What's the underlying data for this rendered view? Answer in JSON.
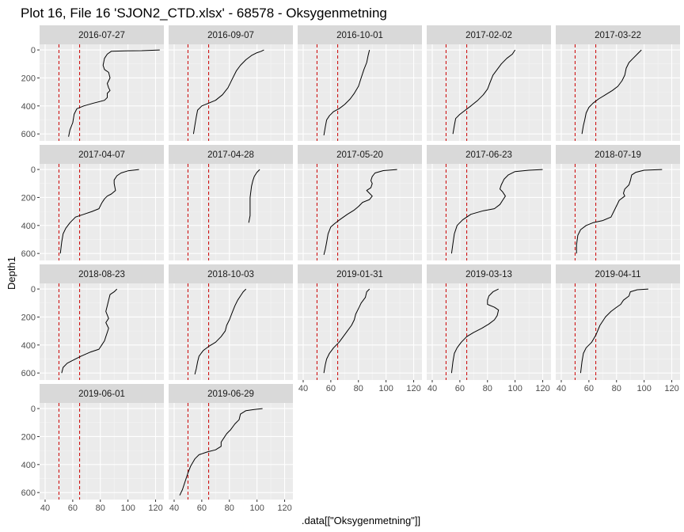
{
  "chart_data": {
    "type": "line",
    "title": "Plot 16, File 16 'SJON2_CTD.xlsx' - 68578  -  Oksygenmetning",
    "xlabel": ".data[[\"Oksygenmetning\"]]",
    "ylabel": "Depth1",
    "xlim": [
      36,
      126
    ],
    "ylim": [
      650,
      -40
    ],
    "xticks": [
      40,
      60,
      80,
      100,
      120
    ],
    "yticks": [
      0,
      200,
      400,
      600
    ],
    "y_reversed": true,
    "grid": true,
    "reference_lines": {
      "x": [
        50,
        65
      ],
      "color": "#cc0000",
      "style": "dashed"
    },
    "panels": [
      {
        "label": "2016-07-27",
        "points": [
          [
            123,
            0
          ],
          [
            110,
            5
          ],
          [
            98,
            7
          ],
          [
            88,
            9
          ],
          [
            85,
            30
          ],
          [
            83,
            60
          ],
          [
            82,
            110
          ],
          [
            83,
            140
          ],
          [
            86,
            160
          ],
          [
            87,
            200
          ],
          [
            85,
            240
          ],
          [
            86,
            270
          ],
          [
            87,
            290
          ],
          [
            85,
            310
          ],
          [
            85,
            340
          ],
          [
            83,
            360
          ],
          [
            75,
            380
          ],
          [
            68,
            400
          ],
          [
            63,
            420
          ],
          [
            61,
            460
          ],
          [
            60,
            520
          ],
          [
            58,
            570
          ],
          [
            57,
            620
          ]
        ]
      },
      {
        "label": "2016-09-07",
        "points": [
          [
            105,
            0
          ],
          [
            103,
            10
          ],
          [
            100,
            20
          ],
          [
            96,
            40
          ],
          [
            92,
            70
          ],
          [
            88,
            110
          ],
          [
            85,
            150
          ],
          [
            82,
            210
          ],
          [
            79,
            270
          ],
          [
            75,
            320
          ],
          [
            70,
            360
          ],
          [
            65,
            380
          ],
          [
            60,
            400
          ],
          [
            57,
            430
          ],
          [
            56,
            480
          ],
          [
            55,
            540
          ],
          [
            54,
            600
          ]
        ]
      },
      {
        "label": "2016-10-01",
        "points": [
          [
            88,
            0
          ],
          [
            87,
            40
          ],
          [
            86,
            90
          ],
          [
            84,
            140
          ],
          [
            82,
            200
          ],
          [
            80,
            260
          ],
          [
            77,
            310
          ],
          [
            74,
            350
          ],
          [
            70,
            390
          ],
          [
            66,
            420
          ],
          [
            62,
            440
          ],
          [
            59,
            470
          ],
          [
            57,
            500
          ],
          [
            56,
            550
          ],
          [
            55,
            610
          ]
        ]
      },
      {
        "label": "2017-02-02",
        "points": [
          [
            100,
            0
          ],
          [
            98,
            30
          ],
          [
            94,
            60
          ],
          [
            90,
            100
          ],
          [
            87,
            140
          ],
          [
            84,
            180
          ],
          [
            82,
            230
          ],
          [
            80,
            280
          ],
          [
            77,
            320
          ],
          [
            73,
            360
          ],
          [
            68,
            400
          ],
          [
            64,
            430
          ],
          [
            60,
            460
          ],
          [
            57,
            490
          ],
          [
            56,
            540
          ],
          [
            55,
            600
          ]
        ]
      },
      {
        "label": "2017-03-22",
        "points": [
          [
            98,
            0
          ],
          [
            96,
            20
          ],
          [
            92,
            60
          ],
          [
            89,
            90
          ],
          [
            87,
            130
          ],
          [
            86,
            180
          ],
          [
            84,
            220
          ],
          [
            81,
            260
          ],
          [
            77,
            290
          ],
          [
            72,
            320
          ],
          [
            67,
            350
          ],
          [
            63,
            380
          ],
          [
            60,
            410
          ],
          [
            58,
            450
          ],
          [
            57,
            500
          ],
          [
            56,
            540
          ],
          [
            55,
            600
          ]
        ]
      },
      {
        "label": "2017-04-07",
        "points": [
          [
            108,
            0
          ],
          [
            100,
            10
          ],
          [
            95,
            25
          ],
          [
            92,
            45
          ],
          [
            90,
            75
          ],
          [
            90,
            100
          ],
          [
            91,
            150
          ],
          [
            88,
            175
          ],
          [
            85,
            190
          ],
          [
            83,
            210
          ],
          [
            81,
            240
          ],
          [
            79,
            280
          ],
          [
            74,
            300
          ],
          [
            68,
            320
          ],
          [
            62,
            340
          ],
          [
            58,
            380
          ],
          [
            55,
            420
          ],
          [
            53,
            460
          ],
          [
            52,
            520
          ],
          [
            51,
            600
          ]
        ]
      },
      {
        "label": "2017-04-28",
        "points": [
          [
            102,
            0
          ],
          [
            100,
            20
          ],
          [
            98,
            50
          ],
          [
            97,
            80
          ],
          [
            96,
            120
          ],
          [
            95,
            200
          ],
          [
            95,
            280
          ],
          [
            95,
            330
          ],
          [
            94,
            380
          ]
        ]
      },
      {
        "label": "2017-05-20",
        "points": [
          [
            108,
            0
          ],
          [
            98,
            8
          ],
          [
            92,
            25
          ],
          [
            90,
            50
          ],
          [
            89,
            80
          ],
          [
            90,
            100
          ],
          [
            89,
            130
          ],
          [
            86,
            150
          ],
          [
            88,
            170
          ],
          [
            90,
            190
          ],
          [
            88,
            215
          ],
          [
            83,
            235
          ],
          [
            80,
            265
          ],
          [
            77,
            290
          ],
          [
            72,
            320
          ],
          [
            67,
            355
          ],
          [
            63,
            385
          ],
          [
            60,
            410
          ],
          [
            58,
            460
          ],
          [
            57,
            520
          ],
          [
            56,
            570
          ],
          [
            55,
            610
          ]
        ]
      },
      {
        "label": "2017-06-23",
        "points": [
          [
            120,
            0
          ],
          [
            110,
            5
          ],
          [
            100,
            15
          ],
          [
            95,
            40
          ],
          [
            92,
            70
          ],
          [
            90,
            110
          ],
          [
            89,
            140
          ],
          [
            91,
            160
          ],
          [
            93,
            190
          ],
          [
            91,
            220
          ],
          [
            89,
            250
          ],
          [
            85,
            280
          ],
          [
            77,
            295
          ],
          [
            68,
            320
          ],
          [
            62,
            360
          ],
          [
            58,
            400
          ],
          [
            56,
            460
          ],
          [
            55,
            530
          ],
          [
            54,
            600
          ]
        ]
      },
      {
        "label": "2018-07-19",
        "points": [
          [
            113,
            0
          ],
          [
            100,
            5
          ],
          [
            94,
            20
          ],
          [
            91,
            40
          ],
          [
            90,
            80
          ],
          [
            89,
            110
          ],
          [
            86,
            140
          ],
          [
            85,
            170
          ],
          [
            86,
            190
          ],
          [
            82,
            220
          ],
          [
            80,
            260
          ],
          [
            78,
            300
          ],
          [
            76,
            340
          ],
          [
            70,
            365
          ],
          [
            63,
            380
          ],
          [
            58,
            400
          ],
          [
            54,
            430
          ],
          [
            52,
            470
          ],
          [
            51,
            540
          ],
          [
            51,
            600
          ]
        ]
      },
      {
        "label": "2018-08-23",
        "points": [
          [
            92,
            0
          ],
          [
            90,
            20
          ],
          [
            87,
            40
          ],
          [
            86,
            80
          ],
          [
            85,
            120
          ],
          [
            84,
            160
          ],
          [
            86,
            210
          ],
          [
            84,
            240
          ],
          [
            86,
            280
          ],
          [
            85,
            310
          ],
          [
            84,
            340
          ],
          [
            83,
            370
          ],
          [
            81,
            400
          ],
          [
            79,
            430
          ],
          [
            73,
            450
          ],
          [
            66,
            480
          ],
          [
            60,
            510
          ],
          [
            56,
            530
          ],
          [
            53,
            560
          ],
          [
            52,
            600
          ]
        ]
      },
      {
        "label": "2018-10-03",
        "points": [
          [
            92,
            0
          ],
          [
            90,
            20
          ],
          [
            88,
            50
          ],
          [
            86,
            80
          ],
          [
            84,
            120
          ],
          [
            82,
            170
          ],
          [
            80,
            220
          ],
          [
            78,
            260
          ],
          [
            77,
            300
          ],
          [
            74,
            340
          ],
          [
            70,
            380
          ],
          [
            65,
            410
          ],
          [
            61,
            440
          ],
          [
            58,
            480
          ],
          [
            57,
            520
          ],
          [
            56,
            570
          ],
          [
            55,
            610
          ]
        ]
      },
      {
        "label": "2019-01-31",
        "points": [
          [
            88,
            0
          ],
          [
            86,
            20
          ],
          [
            85,
            60
          ],
          [
            82,
            100
          ],
          [
            80,
            140
          ],
          [
            78,
            180
          ],
          [
            77,
            220
          ],
          [
            75,
            260
          ],
          [
            72,
            300
          ],
          [
            69,
            340
          ],
          [
            66,
            380
          ],
          [
            62,
            420
          ],
          [
            59,
            460
          ],
          [
            57,
            500
          ],
          [
            56,
            540
          ],
          [
            55,
            600
          ]
        ]
      },
      {
        "label": "2019-03-13",
        "points": [
          [
            88,
            0
          ],
          [
            84,
            20
          ],
          [
            81,
            50
          ],
          [
            80,
            80
          ],
          [
            80,
            110
          ],
          [
            85,
            130
          ],
          [
            88,
            150
          ],
          [
            87,
            190
          ],
          [
            85,
            220
          ],
          [
            81,
            250
          ],
          [
            76,
            280
          ],
          [
            70,
            310
          ],
          [
            65,
            340
          ],
          [
            61,
            380
          ],
          [
            58,
            420
          ],
          [
            56,
            460
          ],
          [
            55,
            520
          ],
          [
            54,
            600
          ]
        ]
      },
      {
        "label": "2019-04-11",
        "points": [
          [
            103,
            0
          ],
          [
            95,
            5
          ],
          [
            90,
            20
          ],
          [
            89,
            50
          ],
          [
            85,
            80
          ],
          [
            83,
            110
          ],
          [
            80,
            130
          ],
          [
            76,
            160
          ],
          [
            72,
            200
          ],
          [
            68,
            260
          ],
          [
            65,
            330
          ],
          [
            62,
            380
          ],
          [
            58,
            420
          ],
          [
            56,
            460
          ],
          [
            55,
            520
          ],
          [
            54,
            600
          ]
        ]
      },
      {
        "label": "2019-06-01",
        "points": []
      },
      {
        "label": "2019-06-29",
        "points": [
          [
            104,
            0
          ],
          [
            98,
            7
          ],
          [
            92,
            15
          ],
          [
            88,
            40
          ],
          [
            87,
            80
          ],
          [
            84,
            110
          ],
          [
            81,
            150
          ],
          [
            78,
            180
          ],
          [
            76,
            210
          ],
          [
            74,
            240
          ],
          [
            74,
            270
          ],
          [
            70,
            295
          ],
          [
            64,
            310
          ],
          [
            58,
            330
          ],
          [
            55,
            360
          ],
          [
            52,
            410
          ],
          [
            50,
            460
          ],
          [
            48,
            520
          ],
          [
            46,
            580
          ],
          [
            44,
            620
          ]
        ]
      }
    ]
  }
}
